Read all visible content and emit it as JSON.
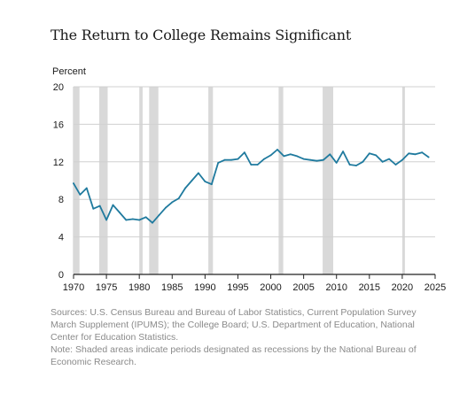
{
  "chart_data": {
    "type": "line",
    "title": "The Return to College Remains Significant",
    "ylabel": "Percent",
    "xlim": [
      1970,
      2025
    ],
    "ylim": [
      0,
      20
    ],
    "xticks": [
      1970,
      1975,
      1980,
      1985,
      1990,
      1995,
      2000,
      2005,
      2010,
      2015,
      2020,
      2025
    ],
    "yticks": [
      0,
      4,
      8,
      12,
      16,
      20
    ],
    "grid": true,
    "line_color": "#1f7a9e",
    "shade_color": "#d9d9d9",
    "recessions": [
      [
        1969.9,
        1970.9
      ],
      [
        1973.9,
        1975.2
      ],
      [
        1980.0,
        1980.5
      ],
      [
        1981.5,
        1982.9
      ],
      [
        1990.5,
        1991.2
      ],
      [
        2001.2,
        2001.9
      ],
      [
        2007.9,
        2009.5
      ],
      [
        2020.0,
        2020.4
      ]
    ],
    "series": [
      {
        "x": [
          1970,
          1971,
          1972,
          1973,
          1974,
          1975,
          1976,
          1977,
          1978,
          1979,
          1980,
          1981,
          1982,
          1983,
          1984,
          1985,
          1986,
          1987,
          1988,
          1989,
          1990,
          1991,
          1992,
          1993,
          1994,
          1995,
          1996,
          1997,
          1998,
          1999,
          2000,
          2001,
          2002,
          2003,
          2004,
          2005,
          2006,
          2007,
          2008,
          2009,
          2010,
          2011,
          2012,
          2013,
          2014,
          2015,
          2016,
          2017,
          2018,
          2019,
          2020,
          2021,
          2022,
          2023,
          2024
        ],
        "values": [
          9.7,
          8.5,
          9.2,
          7.0,
          7.3,
          5.8,
          7.4,
          6.6,
          5.8,
          5.9,
          5.8,
          6.1,
          5.5,
          6.3,
          7.1,
          7.7,
          8.1,
          9.2,
          10.0,
          10.8,
          9.9,
          9.6,
          11.9,
          12.2,
          12.2,
          12.3,
          13.0,
          11.7,
          11.7,
          12.3,
          12.7,
          13.3,
          12.6,
          12.8,
          12.6,
          12.3,
          12.2,
          12.1,
          12.2,
          12.8,
          11.9,
          13.1,
          11.7,
          11.6,
          12.0,
          12.9,
          12.7,
          12.0,
          12.3,
          11.7,
          12.2,
          12.9,
          12.8,
          13.0,
          12.5
        ]
      }
    ]
  },
  "notes": {
    "sources": "Sources: U.S. Census Bureau and Bureau of Labor Statistics, Current Population Survey March Supplement (IPUMS); the College Board; U.S. Department of Education, National Center for Education Statistics.",
    "note": "Note: Shaded areas indicate periods designated as recessions by the National Bureau of Economic Research."
  }
}
